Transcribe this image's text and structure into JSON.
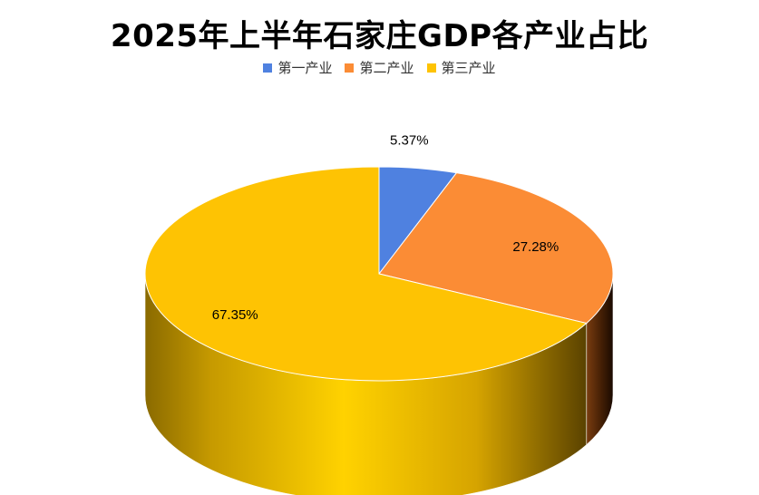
{
  "chart_data": {
    "type": "pie",
    "title": "2025年上半年石家庄GDP各产业占比",
    "legend_position": "top",
    "categories": [
      "第一产业",
      "第二产业",
      "第三产业"
    ],
    "values": [
      5.37,
      27.28,
      67.35
    ],
    "labels": [
      "5.37%",
      "27.28%",
      "67.35%"
    ],
    "colors": [
      "#4f81e0",
      "#fb8c35",
      "#fec303"
    ]
  }
}
